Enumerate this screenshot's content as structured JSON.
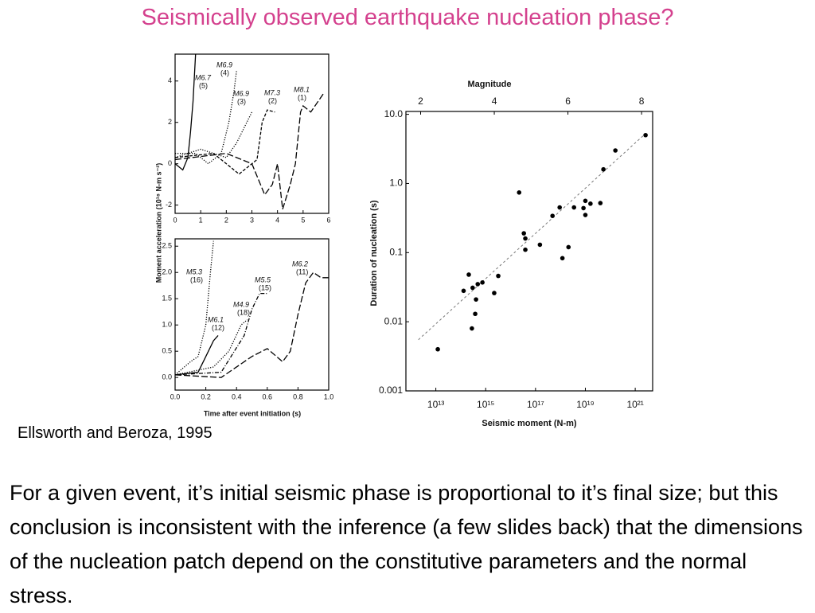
{
  "title": "Seismically observed earthquake nucleation phase?",
  "citation": "Ellsworth and Beroza, 1995",
  "body": "For a given event, it’s initial seismic phase is proportional to it’s final size; but this conclusion is inconsistent with the inference (a few slides back) that the dimensions of the nucleation patch depend on the constitutive parameters and the normal stress.",
  "chart_data": [
    {
      "type": "line",
      "ylabel": "Moment acceleration (10¹⁸ N-m s⁻²)",
      "xlim": [
        0,
        6
      ],
      "xticks": [
        0,
        1,
        2,
        3,
        4,
        5,
        6
      ],
      "ylim": [
        -2.4,
        5.3
      ],
      "yticks": [
        -2,
        0,
        2,
        4
      ],
      "series": [
        {
          "name": "M6.7",
          "id": "(5)",
          "color": "#000000",
          "dash": "solid",
          "x": [
            0,
            0.3,
            0.5,
            0.6,
            0.7,
            0.8
          ],
          "values": [
            0,
            -0.3,
            0.3,
            1.5,
            3,
            5.3
          ]
        },
        {
          "name": "M6.9",
          "id": "(4)",
          "color": "#000000",
          "dash": "dotted",
          "x": [
            0,
            0.8,
            1.3,
            1.8,
            2.1,
            2.3,
            2.4
          ],
          "values": [
            0.5,
            0.5,
            0,
            0.5,
            2,
            3.5,
            4.5
          ]
        },
        {
          "name": "M6.9",
          "id": "(3)",
          "color": "#000000",
          "dash": "dotted",
          "x": [
            0,
            1,
            2,
            2.4,
            2.8,
            3
          ],
          "values": [
            0.3,
            0.7,
            0.3,
            1,
            2,
            2.5
          ]
        },
        {
          "name": "M7.3",
          "id": "(2)",
          "color": "#000000",
          "dash": "dashed",
          "x": [
            0,
            1.5,
            2.5,
            3.2,
            3.4,
            3.6,
            3.9
          ],
          "values": [
            0.3,
            0.5,
            -0.5,
            0.2,
            2,
            2.6,
            2.5
          ]
        },
        {
          "name": "M8.1",
          "id": "(1)",
          "color": "#000000",
          "dash": "longdash",
          "x": [
            0,
            2,
            3,
            3.5,
            3.8,
            4,
            4.2,
            4.5,
            4.7,
            4.9,
            5,
            5.3,
            5.8
          ],
          "values": [
            0.2,
            0.5,
            0,
            -1.5,
            -1,
            0,
            -2.2,
            -1,
            0,
            2.5,
            2.8,
            2.5,
            3.4
          ]
        }
      ]
    },
    {
      "type": "line",
      "xlabel": "Time after event initiation (s)",
      "xlim": [
        0,
        1
      ],
      "xticks": [
        {
          "value": 0,
          "label": "0.0"
        },
        0.2,
        0.4,
        0.6,
        0.8,
        {
          "value": 1,
          "label": "1.0"
        }
      ],
      "ylim": [
        -0.24,
        2.64
      ],
      "yticks": [
        {
          "value": 0,
          "label": "0.0"
        },
        0.5,
        {
          "value": 1,
          "label": "1.0"
        },
        1.5,
        {
          "value": 2,
          "label": "2.0"
        },
        2.5
      ],
      "series": [
        {
          "name": "M5.3",
          "id": "(16)",
          "color": "#000000",
          "dash": "dotted",
          "x": [
            0,
            0.1,
            0.15,
            0.2,
            0.23,
            0.25
          ],
          "values": [
            0.05,
            0.3,
            0.4,
            1,
            2,
            2.6
          ]
        },
        {
          "name": "M6.1",
          "id": "(12)",
          "color": "#000000",
          "dash": "solid",
          "x": [
            0,
            0.15,
            0.2,
            0.25,
            0.28
          ],
          "values": [
            0.05,
            0.1,
            0.4,
            0.7,
            0.8
          ]
        },
        {
          "name": "M4.9",
          "id": "(18)",
          "color": "#000000",
          "dash": "dotted",
          "x": [
            0,
            0.25,
            0.35,
            0.43,
            0.47
          ],
          "values": [
            0.05,
            0.2,
            0.5,
            1,
            1.1
          ]
        },
        {
          "name": "M5.5",
          "id": "(15)",
          "color": "#000000",
          "dash": "dashdot",
          "x": [
            0,
            0.3,
            0.45,
            0.5,
            0.55,
            0.6
          ],
          "values": [
            0.05,
            0.1,
            0.8,
            1.3,
            1.6,
            1.6
          ]
        },
        {
          "name": "M6.2",
          "id": "(11)",
          "color": "#000000",
          "dash": "longdash",
          "x": [
            0,
            0.3,
            0.5,
            0.6,
            0.7,
            0.75,
            0.8,
            0.85,
            0.9,
            0.95,
            1
          ],
          "values": [
            0.05,
            0,
            0.4,
            0.55,
            0.3,
            0.5,
            1.2,
            1.8,
            2,
            1.9,
            1.9
          ]
        }
      ]
    },
    {
      "type": "scatter",
      "xlabel": "Seismic moment (N-m)",
      "ylabel": "Duration of nucleation (s)",
      "x2label": "Magnitude",
      "xlog": true,
      "ylog": true,
      "xlim": [
        630000000000.0,
        5e+21
      ],
      "xticks": [
        {
          "value": 10000000000000.0,
          "label": "10¹³"
        },
        {
          "value": 1000000000000000.0,
          "label": "10¹⁵"
        },
        {
          "value": 1e+17,
          "label": "10¹⁷"
        },
        {
          "value": 1e+19,
          "label": "10¹⁹"
        },
        {
          "value": 1e+21,
          "label": "10²¹"
        }
      ],
      "x2lim": [
        1.6,
        8.3
      ],
      "x2ticks": [
        2,
        4,
        6,
        8
      ],
      "ylim": [
        0.001,
        11
      ],
      "yticks": [
        {
          "value": 10,
          "label": "10.0"
        },
        {
          "value": 1,
          "label": "1.0"
        },
        0.1,
        0.01,
        0.001
      ],
      "color": "#000000",
      "x": [
        12000000000000.0,
        210000000000000.0,
        130000000000000.0,
        300000000000000.0,
        480000000000000.0,
        740000000000000.0,
        410000000000000.0,
        380000000000000.0,
        280000000000000.0,
        2200000000000000.0,
        3200000000000000.0,
        2.2e+16,
        3.4e+16,
        3.9e+16,
        3.9e+16,
        1.5e+17,
        4.8e+17,
        9.3e+17,
        1.2e+18,
        2.1e+18,
        3.5e+18,
        8.4e+18,
        1e+19,
        1e+19,
        1.6e+19,
        4e+19,
        5.3e+19,
        1.6e+20,
        2.6e+21
      ],
      "values": [
        0.004,
        0.048,
        0.028,
        0.031,
        0.035,
        0.037,
        0.021,
        0.013,
        0.008,
        0.026,
        0.046,
        0.74,
        0.19,
        0.16,
        0.11,
        0.13,
        0.34,
        0.45,
        0.083,
        0.12,
        0.45,
        0.44,
        0.56,
        0.35,
        0.51,
        0.52,
        1.6,
        3.0,
        5.0
      ],
      "trend": {
        "x": [
          2000000000000.0,
          2.5e+21
        ],
        "values": [
          0.0055,
          5.2
        ]
      }
    }
  ]
}
